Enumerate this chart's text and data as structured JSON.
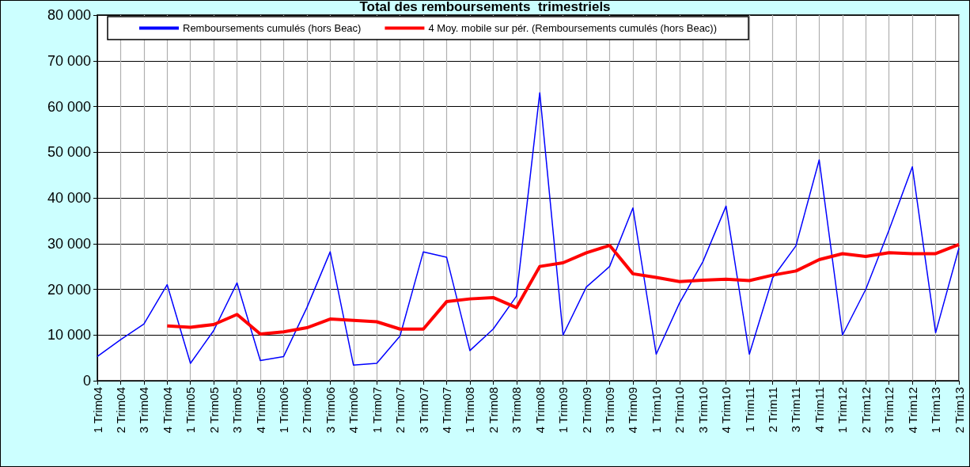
{
  "chart_data": {
    "type": "line",
    "title": "Total des remboursements  trimestriels",
    "categories": [
      "1 Trim04",
      "2 Trim04",
      "3 Trim04",
      "4 Trim04",
      "1 Trim05",
      "2 Trim05",
      "3 Trim05",
      "4 Trim05",
      "1 Trim06",
      "2 Trim06",
      "3 Trim06",
      "4 Trim06",
      "1 Trim07",
      "2 Trim07",
      "3 Trim07",
      "4 Trim07",
      "1 Trim08",
      "2 Trim08",
      "3 Trim08",
      "4 Trim08",
      "1 Trim09",
      "2 Trim09",
      "3 Trim09",
      "4 Trim09",
      "1 Trim10",
      "2 Trim10",
      "3 Trim10",
      "4 Trim10",
      "1 Trim11",
      "2 Trim11",
      "3 Trim11",
      "4 Trim11",
      "1 Trim12",
      "2 Trim12",
      "3 Trim12",
      "4 Trim12",
      "1 Trim13",
      "2 Trim13"
    ],
    "series": [
      {
        "name": "Remboursements cumulés (hors Beac)",
        "color": "#0000ff",
        "values": [
          5300,
          9000,
          12400,
          21000,
          3800,
          11000,
          21400,
          4400,
          5300,
          16000,
          28200,
          3400,
          3800,
          9800,
          28200,
          27000,
          6600,
          11300,
          18500,
          63000,
          10000,
          20500,
          25000,
          37800,
          5800,
          17000,
          26000,
          38200,
          5800,
          22500,
          29500,
          48300,
          10000,
          20000,
          33000,
          46800,
          10500,
          29000
        ]
      },
      {
        "name": "4 Moy. mobile sur pér. (Remboursements cumulés (hors Beac))",
        "color": "#ff0000",
        "values": [
          null,
          null,
          null,
          12000,
          11700,
          12300,
          14500,
          10200,
          10700,
          11600,
          13500,
          13200,
          12900,
          11300,
          11300,
          17300,
          17900,
          18200,
          16000,
          25000,
          25800,
          28000,
          29600,
          23400,
          22600,
          21700,
          22000,
          22200,
          21900,
          23100,
          24000,
          26500,
          27800,
          27200,
          28000,
          27800,
          27800,
          29800
        ]
      }
    ],
    "ylim": [
      0,
      80000
    ],
    "yticks": [
      {
        "value": 0,
        "label": "0"
      },
      {
        "value": 10000,
        "label": "10 000"
      },
      {
        "value": 20000,
        "label": "20 000"
      },
      {
        "value": 30000,
        "label": "30 000"
      },
      {
        "value": 40000,
        "label": "40 000"
      },
      {
        "value": 50000,
        "label": "50 000"
      },
      {
        "value": 60000,
        "label": "60 000"
      },
      {
        "value": 70000,
        "label": "70 000"
      },
      {
        "value": 80000,
        "label": "80 000"
      }
    ],
    "grid": true,
    "legend": "top",
    "marker": "none",
    "line_style": "solid"
  }
}
